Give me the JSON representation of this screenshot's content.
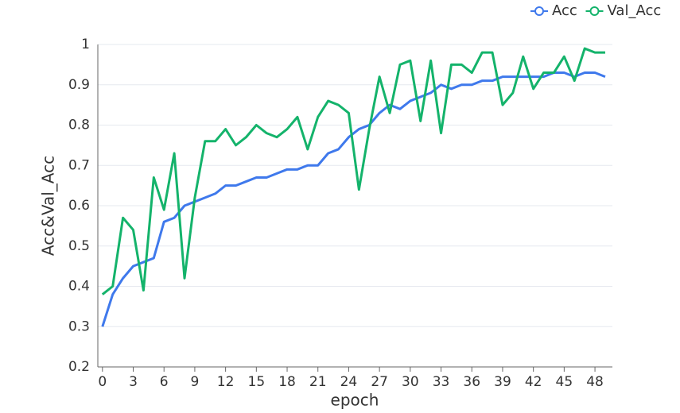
{
  "chart_data": {
    "type": "line",
    "x": [
      0,
      1,
      2,
      3,
      4,
      5,
      6,
      7,
      8,
      9,
      10,
      11,
      12,
      13,
      14,
      15,
      16,
      17,
      18,
      19,
      20,
      21,
      22,
      23,
      24,
      25,
      26,
      27,
      28,
      29,
      30,
      31,
      32,
      33,
      34,
      35,
      36,
      37,
      38,
      39,
      40,
      41,
      42,
      43,
      44,
      45,
      46,
      47,
      48,
      49
    ],
    "series": [
      {
        "name": "Acc",
        "color": "#3f79ec",
        "values": [
          0.3,
          0.38,
          0.42,
          0.45,
          0.46,
          0.47,
          0.56,
          0.57,
          0.6,
          0.61,
          0.62,
          0.63,
          0.65,
          0.65,
          0.66,
          0.67,
          0.67,
          0.68,
          0.69,
          0.69,
          0.7,
          0.7,
          0.73,
          0.74,
          0.77,
          0.79,
          0.8,
          0.83,
          0.85,
          0.84,
          0.86,
          0.87,
          0.88,
          0.9,
          0.89,
          0.9,
          0.9,
          0.91,
          0.91,
          0.92,
          0.92,
          0.92,
          0.92,
          0.92,
          0.93,
          0.93,
          0.92,
          0.93,
          0.93,
          0.92
        ]
      },
      {
        "name": "Val_Acc",
        "color": "#14b36b",
        "values": [
          0.38,
          0.4,
          0.57,
          0.54,
          0.39,
          0.67,
          0.59,
          0.73,
          0.42,
          0.62,
          0.76,
          0.76,
          0.79,
          0.75,
          0.77,
          0.8,
          0.78,
          0.77,
          0.79,
          0.82,
          0.74,
          0.82,
          0.86,
          0.85,
          0.83,
          0.64,
          0.79,
          0.92,
          0.83,
          0.95,
          0.96,
          0.81,
          0.96,
          0.78,
          0.95,
          0.95,
          0.93,
          0.98,
          0.98,
          0.85,
          0.88,
          0.97,
          0.89,
          0.93,
          0.93,
          0.97,
          0.91,
          0.99,
          0.98,
          0.98
        ]
      }
    ],
    "xlabel": "epoch",
    "ylabel": "Acc&Val_Acc",
    "xlim": [
      -0.45,
      49.7
    ],
    "xticks": [
      0,
      3,
      6,
      9,
      12,
      15,
      18,
      21,
      24,
      27,
      30,
      33,
      36,
      39,
      42,
      45,
      48
    ],
    "ylim": [
      0.2,
      1
    ],
    "yticks": [
      0.2,
      0.3,
      0.4,
      0.5,
      0.6,
      0.7,
      0.8,
      0.9,
      1
    ],
    "grid": true,
    "legend": "top-right"
  }
}
